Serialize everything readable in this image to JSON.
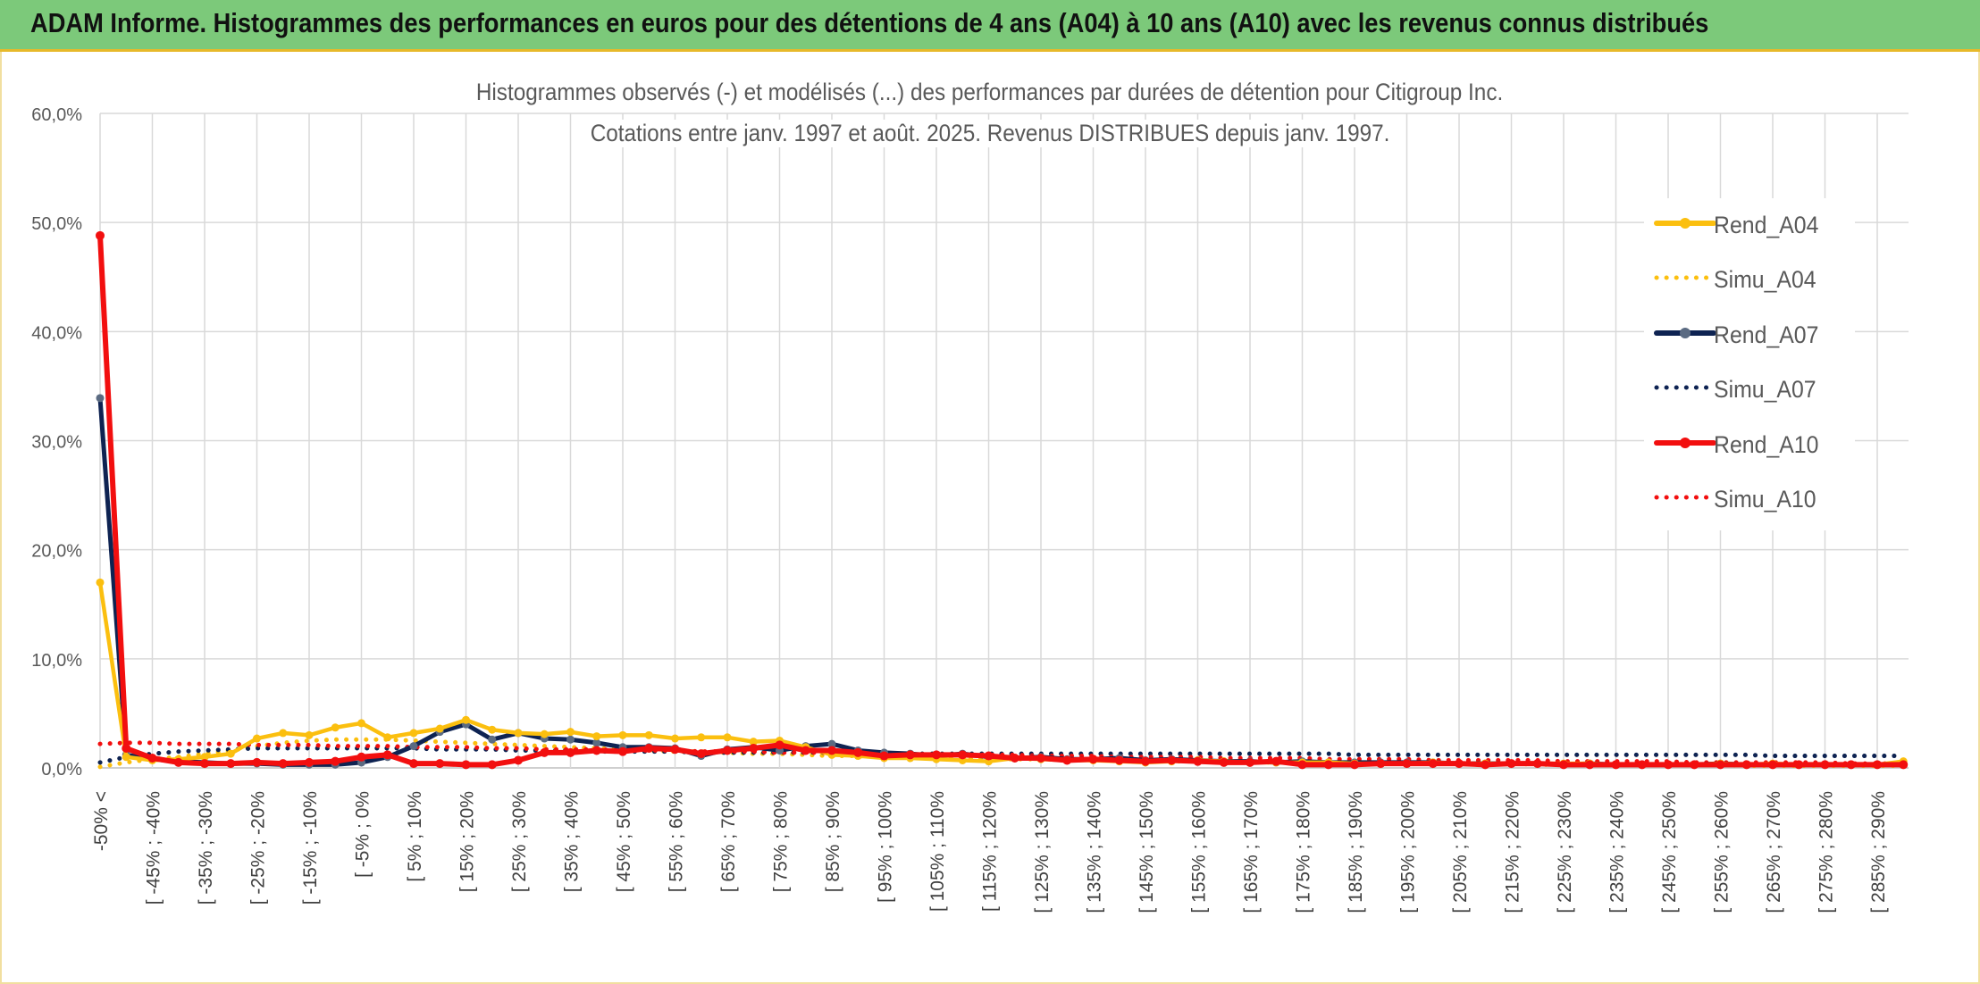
{
  "header": {
    "title": "ADAM Informe. Histogrammes des performances en euros pour des détentions de 4 ans (A04) à 10 ans (A10) avec les revenus connus distribués"
  },
  "colors": {
    "banner_bg": "#7cc97a",
    "banner_border": "#e7b92a",
    "A04": "#fbbf0f",
    "A07": "#0e2352",
    "A07_marker": "#5b6b82",
    "A10": "#f20f0f"
  },
  "chart_data": {
    "type": "line",
    "title": "Histogrammes observés (-) et modélisés (...) des performances par durées de détention pour Citigroup Inc.",
    "subtitle": "Cotations entre janv. 1997 et août. 2025. Revenus DISTRIBUES depuis janv. 1997.",
    "xlabel": "",
    "ylabel": "",
    "ylim": [
      0,
      60
    ],
    "y_ticks": [
      "0,0%",
      "10,0%",
      "20,0%",
      "30,0%",
      "40,0%",
      "50,0%",
      "60,0%"
    ],
    "grid": true,
    "legend_position": "right",
    "categories": [
      "-50% <",
      "[ -50% ; -45%",
      "[ -45% ; -40%",
      "[ -40% ; -35%",
      "[ -35% ; -30%",
      "[ -30% ; -25%",
      "[ -25% ; -20%",
      "[ -20% ; -15%",
      "[ -15% ; -10%",
      "[ -10% ; -5%",
      "[ -5% ; 0%",
      "[ 0% ; 5%",
      "[ 5% ; 10%",
      "[ 10% ; 15%",
      "[ 15% ; 20%",
      "[ 20% ; 25%",
      "[ 25% ; 30%",
      "[ 30% ; 35%",
      "[ 35% ; 40%",
      "[ 40% ; 45%",
      "[ 45% ; 50%",
      "[ 50% ; 55%",
      "[ 55% ; 60%",
      "[ 60% ; 65%",
      "[ 65% ; 70%",
      "[ 70% ; 75%",
      "[ 75% ; 80%",
      "[ 80% ; 85%",
      "[ 85% ; 90%",
      "[ 90% ; 95%",
      "[ 95% ; 100%",
      "[ 100% ; 105%",
      "[ 105% ; 110%",
      "[ 110% ; 115%",
      "[ 115% ; 120%",
      "[ 120% ; 125%",
      "[ 125% ; 130%",
      "[ 130% ; 135%",
      "[ 135% ; 140%",
      "[ 140% ; 145%",
      "[ 145% ; 150%",
      "[ 150% ; 155%",
      "[ 155% ; 160%",
      "[ 160% ; 165%",
      "[ 165% ; 170%",
      "[ 170% ; 175%",
      "[ 175% ; 180%",
      "[ 180% ; 185%",
      "[ 185% ; 190%",
      "[ 190% ; 195%",
      "[ 195% ; 200%",
      "[ 200% ; 205%",
      "[ 205% ; 210%",
      "[ 210% ; 215%",
      "[ 215% ; 220%",
      "[ 220% ; 225%",
      "[ 225% ; 230%",
      "[ 230% ; 235%",
      "[ 235% ; 240%",
      "[ 240% ; 245%",
      "[ 245% ; 250%",
      "[ 250% ; 255%",
      "[ 255% ; 260%",
      "[ 260% ; 265%",
      "[ 265% ; 270%",
      "[ 270% ; 275%",
      "[ 275% ; 280%",
      "[ 280% ; 285%",
      "[ 285% ; 290%",
      "[ 290% ; 295%"
    ],
    "visible_tick_labels": [
      "-50% <",
      "[ -45% ; -40%",
      "[ -35% ; -30%",
      "[ -25% ; -20%",
      "[ -15% ; -10%",
      "[ -5% ; 0%",
      "[ 5% ; 10%",
      "[ 15% ; 20%",
      "[ 25% ; 30%",
      "[ 35% ; 40%",
      "[ 45% ; 50%",
      "[ 55% ; 60%",
      "[ 65% ; 70%",
      "[ 75% ; 80%",
      "[ 85% ; 90%",
      "[ 95% ; 100%",
      "[ 105% ; 110%",
      "[ 115% ; 120%",
      "[ 125% ; 130%",
      "[ 135% ; 140%",
      "[ 145% ; 150%",
      "[ 155% ; 160%",
      "[ 165% ; 170%",
      "[ 175% ; 180%",
      "[ 185% ; 190%",
      "[ 195% ; 200%",
      "[ 205% ; 210%",
      "[ 215% ; 220%",
      "[ 225% ; 230%",
      "[ 235% ; 240%",
      "[ 245% ; 250%",
      "[ 255% ; 260%",
      "[ 265% ; 270%",
      "[ 275% ; 280%",
      "[ 285% ; 290%"
    ],
    "series": [
      {
        "name": "Rend_A04",
        "style": "solid",
        "color": "#fbbf0f",
        "values": [
          17.0,
          1.0,
          0.7,
          0.8,
          1.0,
          1.3,
          2.7,
          3.2,
          3.0,
          3.7,
          4.1,
          2.8,
          3.2,
          3.6,
          4.4,
          3.5,
          3.2,
          3.1,
          3.3,
          2.9,
          3.0,
          3.0,
          2.7,
          2.8,
          2.8,
          2.4,
          2.5,
          1.9,
          1.2,
          1.1,
          0.9,
          0.9,
          0.8,
          0.7,
          0.6,
          0.9,
          0.8,
          0.7,
          0.7,
          0.6,
          0.5,
          0.6,
          0.7,
          0.6,
          0.5,
          0.5,
          0.5,
          0.5,
          0.4,
          0.4,
          0.4,
          0.5,
          0.4,
          0.4,
          0.4,
          0.4,
          0.4,
          0.4,
          0.3,
          0.3,
          0.3,
          0.3,
          0.4,
          0.3,
          0.4,
          0.3,
          0.3,
          0.3,
          0.3,
          0.6
        ]
      },
      {
        "name": "Simu_A04",
        "style": "dotted",
        "color": "#fbbf0f",
        "values": [
          0.1,
          0.5,
          0.8,
          1.0,
          1.3,
          1.6,
          2.0,
          2.3,
          2.5,
          2.6,
          2.6,
          2.6,
          2.5,
          2.4,
          2.3,
          2.2,
          2.1,
          2.0,
          1.9,
          1.8,
          1.7,
          1.6,
          1.5,
          1.5,
          1.4,
          1.3,
          1.3,
          1.2,
          1.1,
          1.1,
          1.0,
          1.0,
          0.9,
          0.9,
          0.8,
          0.8,
          0.8,
          0.7,
          0.7,
          0.7,
          0.6,
          0.6,
          0.6,
          0.6,
          0.5,
          0.5,
          0.5,
          0.5,
          0.5,
          0.4,
          0.4,
          0.4,
          0.4,
          0.4,
          0.4,
          0.3,
          0.3,
          0.3,
          0.3,
          0.3,
          0.3,
          0.3,
          0.3,
          0.2,
          0.2,
          0.2,
          0.2,
          0.2,
          0.2,
          0.2
        ]
      },
      {
        "name": "Rend_A07",
        "style": "solid",
        "color": "#0e2352",
        "values": [
          33.9,
          1.2,
          0.8,
          0.6,
          0.5,
          0.4,
          0.4,
          0.3,
          0.3,
          0.3,
          0.5,
          1.0,
          2.0,
          3.3,
          4.0,
          2.6,
          3.2,
          2.7,
          2.6,
          2.3,
          1.9,
          1.9,
          1.8,
          1.1,
          1.7,
          1.9,
          1.6,
          2.0,
          2.2,
          1.6,
          1.4,
          1.3,
          1.1,
          1.3,
          1.0,
          0.9,
          1.0,
          0.8,
          0.8,
          0.9,
          0.7,
          0.8,
          0.7,
          0.6,
          0.6,
          0.5,
          0.6,
          0.5,
          0.5,
          0.5,
          0.5,
          0.5,
          0.4,
          0.4,
          0.4,
          0.4,
          0.3,
          0.4,
          0.3,
          0.3,
          0.3,
          0.3,
          0.4,
          0.3,
          0.3,
          0.3,
          0.3,
          0.3,
          0.3,
          0.3
        ]
      },
      {
        "name": "Simu_A07",
        "style": "dotted",
        "color": "#0e2352",
        "values": [
          0.5,
          1.0,
          1.3,
          1.5,
          1.6,
          1.7,
          1.8,
          1.8,
          1.8,
          1.8,
          1.8,
          1.8,
          1.8,
          1.7,
          1.7,
          1.7,
          1.6,
          1.6,
          1.6,
          1.5,
          1.5,
          1.5,
          1.5,
          1.4,
          1.4,
          1.4,
          1.4,
          1.4,
          1.4,
          1.4,
          1.3,
          1.3,
          1.3,
          1.3,
          1.3,
          1.3,
          1.3,
          1.3,
          1.3,
          1.3,
          1.3,
          1.3,
          1.3,
          1.3,
          1.3,
          1.3,
          1.3,
          1.3,
          1.2,
          1.2,
          1.2,
          1.2,
          1.2,
          1.2,
          1.2,
          1.2,
          1.2,
          1.2,
          1.2,
          1.2,
          1.2,
          1.2,
          1.2,
          1.2,
          1.1,
          1.1,
          1.1,
          1.1,
          1.1,
          1.1
        ]
      },
      {
        "name": "Rend_A10",
        "style": "solid",
        "color": "#f20f0f",
        "values": [
          48.8,
          1.8,
          0.9,
          0.5,
          0.4,
          0.4,
          0.5,
          0.4,
          0.5,
          0.6,
          1.0,
          1.2,
          0.4,
          0.4,
          0.3,
          0.3,
          0.7,
          1.4,
          1.4,
          1.6,
          1.5,
          1.8,
          1.7,
          1.3,
          1.6,
          1.8,
          2.1,
          1.6,
          1.6,
          1.4,
          1.1,
          1.2,
          1.2,
          1.2,
          1.1,
          0.9,
          0.9,
          0.7,
          0.8,
          0.7,
          0.6,
          0.7,
          0.6,
          0.5,
          0.5,
          0.6,
          0.3,
          0.3,
          0.3,
          0.4,
          0.4,
          0.4,
          0.4,
          0.3,
          0.4,
          0.4,
          0.3,
          0.3,
          0.3,
          0.3,
          0.3,
          0.3,
          0.3,
          0.3,
          0.3,
          0.3,
          0.3,
          0.3,
          0.3,
          0.3
        ]
      },
      {
        "name": "Simu_A10",
        "style": "dotted",
        "color": "#f20f0f",
        "values": [
          2.2,
          2.3,
          2.3,
          2.2,
          2.2,
          2.2,
          2.1,
          2.1,
          2.1,
          2.0,
          2.0,
          2.0,
          1.9,
          1.9,
          1.9,
          1.8,
          1.8,
          1.7,
          1.7,
          1.7,
          1.6,
          1.6,
          1.6,
          1.5,
          1.5,
          1.5,
          1.4,
          1.4,
          1.4,
          1.3,
          1.3,
          1.3,
          1.2,
          1.2,
          1.2,
          1.2,
          1.1,
          1.1,
          1.1,
          1.0,
          1.0,
          1.0,
          1.0,
          0.9,
          0.9,
          0.9,
          0.9,
          0.8,
          0.8,
          0.8,
          0.8,
          0.7,
          0.7,
          0.7,
          0.7,
          0.7,
          0.6,
          0.6,
          0.6,
          0.6,
          0.6,
          0.5,
          0.5,
          0.5,
          0.5,
          0.5,
          0.5,
          0.4,
          0.4,
          0.4
        ]
      }
    ]
  }
}
